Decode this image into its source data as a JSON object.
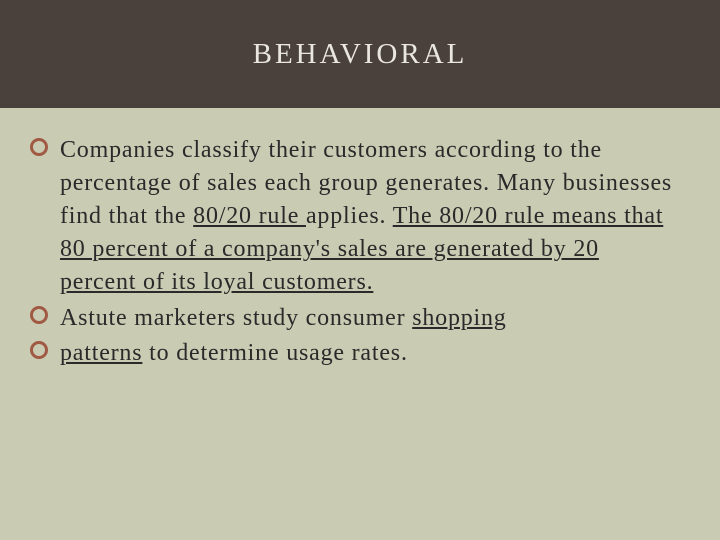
{
  "header": {
    "title": "BEHAVIORAL"
  },
  "body": {
    "bullets": [
      {
        "pre": "Companies classify their customers according to the percentage of sales each group generates. Many businesses find that the ",
        "u1": "80/20 rule ",
        "mid": "applies. ",
        "u2": "The 80/20 rule means that 80 percent of a company's sales are generated by 20 percent of its loyal customers."
      },
      {
        "pre": "Astute marketers study consumer ",
        "u1": "shopping"
      },
      {
        "u1": "patterns",
        "post": " to determine usage rates."
      }
    ]
  },
  "colors": {
    "background": "#c9cbb3",
    "header_bg": "#4a413c",
    "title_color": "#eae7de",
    "text_color": "#2a2a2a",
    "bullet_ring": "#a05a44"
  }
}
